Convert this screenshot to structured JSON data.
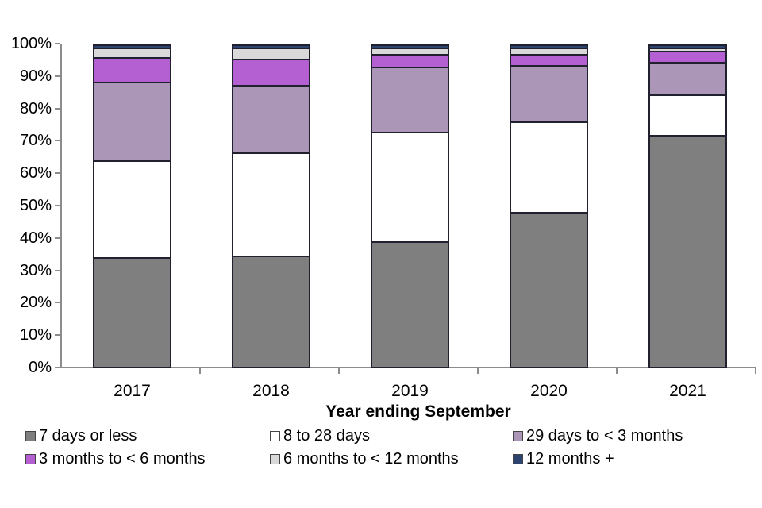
{
  "page": {
    "background": "#ffffff"
  },
  "chart_data": {
    "type": "bar",
    "stacked": true,
    "percent_stacked": true,
    "title": "",
    "xlabel": "Year ending September",
    "ylabel": "",
    "categories": [
      "2017",
      "2018",
      "2019",
      "2020",
      "2021"
    ],
    "yticks": [
      0,
      10,
      20,
      30,
      40,
      50,
      60,
      70,
      80,
      90,
      100
    ],
    "ytick_suffix": "%",
    "ylim": [
      0,
      100
    ],
    "grid": false,
    "legend_position": "bottom",
    "axis_color": "#8c8c8c",
    "bar_border_color": "#20202e",
    "series": [
      {
        "name": "7 days or less",
        "color": "#7f7f7f",
        "values": [
          34,
          34.5,
          39,
          48,
          72
        ]
      },
      {
        "name": "8 to 28 days",
        "color": "#ffffff",
        "values": [
          30,
          32,
          34,
          28,
          12.5
        ]
      },
      {
        "name": "29 days to < 3 months",
        "color": "#ac96b7",
        "values": [
          24.5,
          21,
          20,
          17.5,
          10
        ]
      },
      {
        "name": "3 months to < 6 months",
        "color": "#b45fd2",
        "values": [
          7.5,
          8,
          4,
          3.5,
          3.5
        ]
      },
      {
        "name": "6 months to < 12 months",
        "color": "#d9d9d9",
        "values": [
          3,
          3.5,
          2,
          2,
          1
        ]
      },
      {
        "name": "12 months +",
        "color": "#2e4470",
        "values": [
          1,
          1,
          1,
          1,
          1
        ]
      }
    ]
  }
}
